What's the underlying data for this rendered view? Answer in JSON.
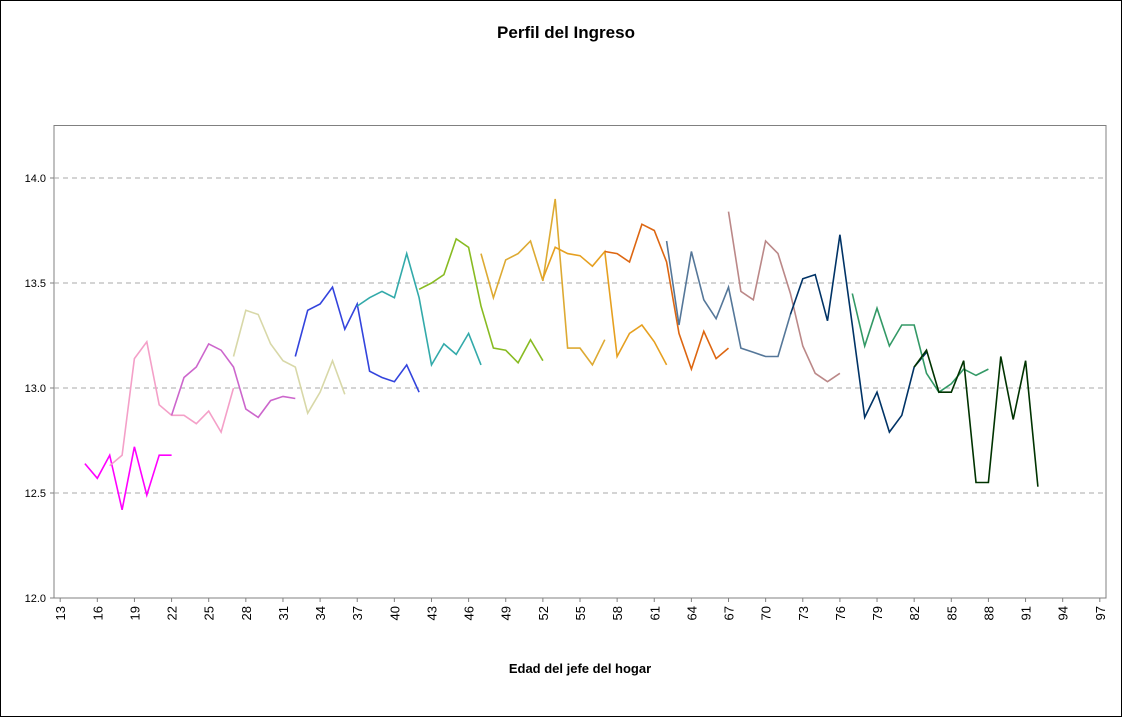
{
  "chart_data": {
    "type": "line",
    "title": "Perfil del Ingreso",
    "x_label": "Edad del jefe del hogar",
    "xlim": [
      12.5,
      97.5
    ],
    "xticks": [
      13,
      16,
      19,
      22,
      25,
      28,
      31,
      34,
      37,
      40,
      43,
      46,
      49,
      52,
      55,
      58,
      61,
      64,
      67,
      70,
      73,
      76,
      79,
      82,
      85,
      88,
      91,
      94,
      97
    ],
    "ylim": [
      12,
      14.25
    ],
    "yticks": [
      {
        "value": 12,
        "label": "12.0"
      },
      12.5,
      {
        "value": 13,
        "label": "13.0"
      },
      13.5,
      {
        "value": 14,
        "label": "14.0"
      }
    ],
    "grid": true,
    "series": [
      {
        "color": "#ff00ff",
        "x": [
          15,
          16,
          17,
          18,
          19,
          20,
          21,
          22
        ],
        "values": [
          12.64,
          12.57,
          12.68,
          12.42,
          12.72,
          12.49,
          12.68,
          12.68
        ]
      },
      {
        "color": "#f4a0c8",
        "x": [
          17,
          18,
          19,
          20,
          21,
          22,
          23,
          24,
          25,
          26,
          27
        ],
        "values": [
          12.63,
          12.68,
          13.14,
          13.22,
          12.92,
          12.87,
          12.87,
          12.83,
          12.89,
          12.79,
          13.0
        ]
      },
      {
        "color": "#cc66cc",
        "x": [
          22,
          23,
          24,
          25,
          26,
          27,
          28,
          29,
          30,
          31,
          32
        ],
        "values": [
          12.87,
          13.05,
          13.1,
          13.21,
          13.18,
          13.1,
          12.9,
          12.86,
          12.94,
          12.96,
          12.95
        ]
      },
      {
        "color": "#d8d8a8",
        "x": [
          27,
          28,
          29,
          30,
          31,
          32,
          33,
          34,
          35,
          36
        ],
        "values": [
          13.15,
          13.37,
          13.35,
          13.21,
          13.13,
          13.1,
          12.88,
          12.98,
          13.13,
          12.97
        ]
      },
      {
        "color": "#3344dd",
        "x": [
          32,
          33,
          34,
          35,
          36,
          37,
          38,
          39,
          40,
          41,
          42
        ],
        "values": [
          13.15,
          13.37,
          13.4,
          13.48,
          13.28,
          13.4,
          13.08,
          13.05,
          13.03,
          13.11,
          12.98
        ]
      },
      {
        "color": "#33aaaa",
        "x": [
          37,
          38,
          39,
          40,
          41,
          42,
          43,
          44,
          45,
          46,
          47
        ],
        "values": [
          13.39,
          13.43,
          13.46,
          13.43,
          13.64,
          13.43,
          13.11,
          13.21,
          13.16,
          13.26,
          13.11
        ]
      },
      {
        "color": "#88bb22",
        "x": [
          42,
          43,
          44,
          45,
          46,
          47,
          48,
          49,
          50,
          51,
          52
        ],
        "values": [
          13.47,
          13.5,
          13.54,
          13.71,
          13.67,
          13.39,
          13.19,
          13.18,
          13.12,
          13.23,
          13.13
        ]
      },
      {
        "color": "#ddaa33",
        "x": [
          47,
          48,
          49,
          50,
          51,
          52,
          53,
          54,
          55,
          56,
          57
        ],
        "values": [
          13.64,
          13.43,
          13.61,
          13.64,
          13.7,
          13.51,
          13.9,
          13.19,
          13.19,
          13.11,
          13.23
        ]
      },
      {
        "color": "#e6a020",
        "x": [
          52,
          53,
          54,
          55,
          56,
          57,
          58,
          59,
          60,
          61,
          62
        ],
        "values": [
          13.52,
          13.67,
          13.64,
          13.63,
          13.58,
          13.65,
          13.15,
          13.26,
          13.3,
          13.22,
          13.11
        ]
      },
      {
        "color": "#dd6611",
        "x": [
          57,
          58,
          59,
          60,
          61,
          62,
          63,
          64,
          65,
          66,
          67
        ],
        "values": [
          13.65,
          13.64,
          13.6,
          13.78,
          13.75,
          13.6,
          13.26,
          13.09,
          13.27,
          13.14,
          13.19
        ]
      },
      {
        "color": "#557799",
        "x": [
          62,
          63,
          64,
          65,
          66,
          67,
          68,
          69,
          70,
          71,
          72
        ],
        "values": [
          13.7,
          13.3,
          13.65,
          13.42,
          13.33,
          13.48,
          13.19,
          13.17,
          13.15,
          13.15,
          13.35
        ]
      },
      {
        "color": "#bb8888",
        "x": [
          67,
          68,
          69,
          70,
          71,
          72,
          73,
          74,
          75,
          76
        ],
        "values": [
          13.84,
          13.46,
          13.42,
          13.7,
          13.64,
          13.45,
          13.2,
          13.07,
          13.03,
          13.07
        ]
      },
      {
        "color": "#003366",
        "x": [
          72,
          73,
          74,
          75,
          76,
          77,
          78,
          79,
          80,
          81,
          82,
          83
        ],
        "values": [
          13.35,
          13.52,
          13.54,
          13.32,
          13.73,
          13.3,
          12.86,
          12.98,
          12.79,
          12.87,
          13.1,
          13.17
        ]
      },
      {
        "color": "#339966",
        "x": [
          77,
          78,
          79,
          80,
          81,
          82,
          83,
          84,
          85,
          86,
          87,
          88
        ],
        "values": [
          13.45,
          13.2,
          13.38,
          13.2,
          13.3,
          13.3,
          13.07,
          12.98,
          13.02,
          13.09,
          13.06,
          13.09
        ]
      },
      {
        "color": "#003300",
        "x": [
          82,
          83,
          84,
          85,
          86,
          87,
          88,
          89,
          90,
          91,
          92
        ],
        "values": [
          13.1,
          13.18,
          12.98,
          12.98,
          13.13,
          12.55,
          12.55,
          13.15,
          12.85,
          13.13,
          12.53
        ]
      }
    ]
  }
}
